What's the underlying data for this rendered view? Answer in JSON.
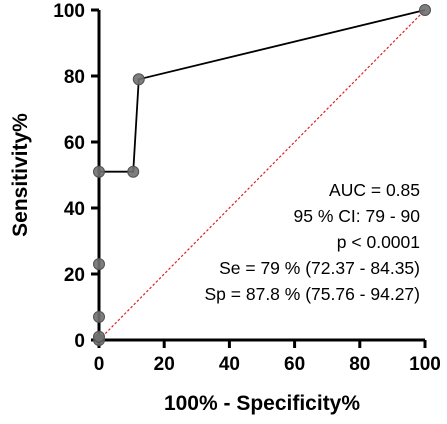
{
  "chart_data": {
    "type": "line",
    "xlabel": "100% - Specificity%",
    "ylabel": "Sensitivity%",
    "xlim": [
      0,
      100
    ],
    "ylim": [
      0,
      100
    ],
    "x_ticks": [
      "0",
      "20",
      "40",
      "60",
      "80",
      "100"
    ],
    "y_ticks": [
      "0",
      "20",
      "40",
      "60",
      "80",
      "100"
    ],
    "grid": false,
    "series": [
      {
        "color": "#000000",
        "marker_color": "#707070",
        "points": [
          {
            "x": 0,
            "y": 0
          },
          {
            "x": 0,
            "y": 1
          },
          {
            "x": 0,
            "y": 7
          },
          {
            "x": 0,
            "y": 23
          },
          {
            "x": 0,
            "y": 51
          },
          {
            "x": 10.5,
            "y": 51
          },
          {
            "x": 12.2,
            "y": 79
          },
          {
            "x": 100,
            "y": 100
          }
        ]
      }
    ],
    "reference_line": {
      "from": [
        0,
        0
      ],
      "to": [
        100,
        100
      ],
      "color": "#e02020",
      "style": "dotted"
    },
    "annotations": [
      "AUC = 0.85",
      "95 % CI: 79 - 90",
      "p < 0.0001",
      "Se = 79 % (72.37 - 84.35)",
      "Sp = 87.8 % (75.76 - 94.27)"
    ]
  }
}
